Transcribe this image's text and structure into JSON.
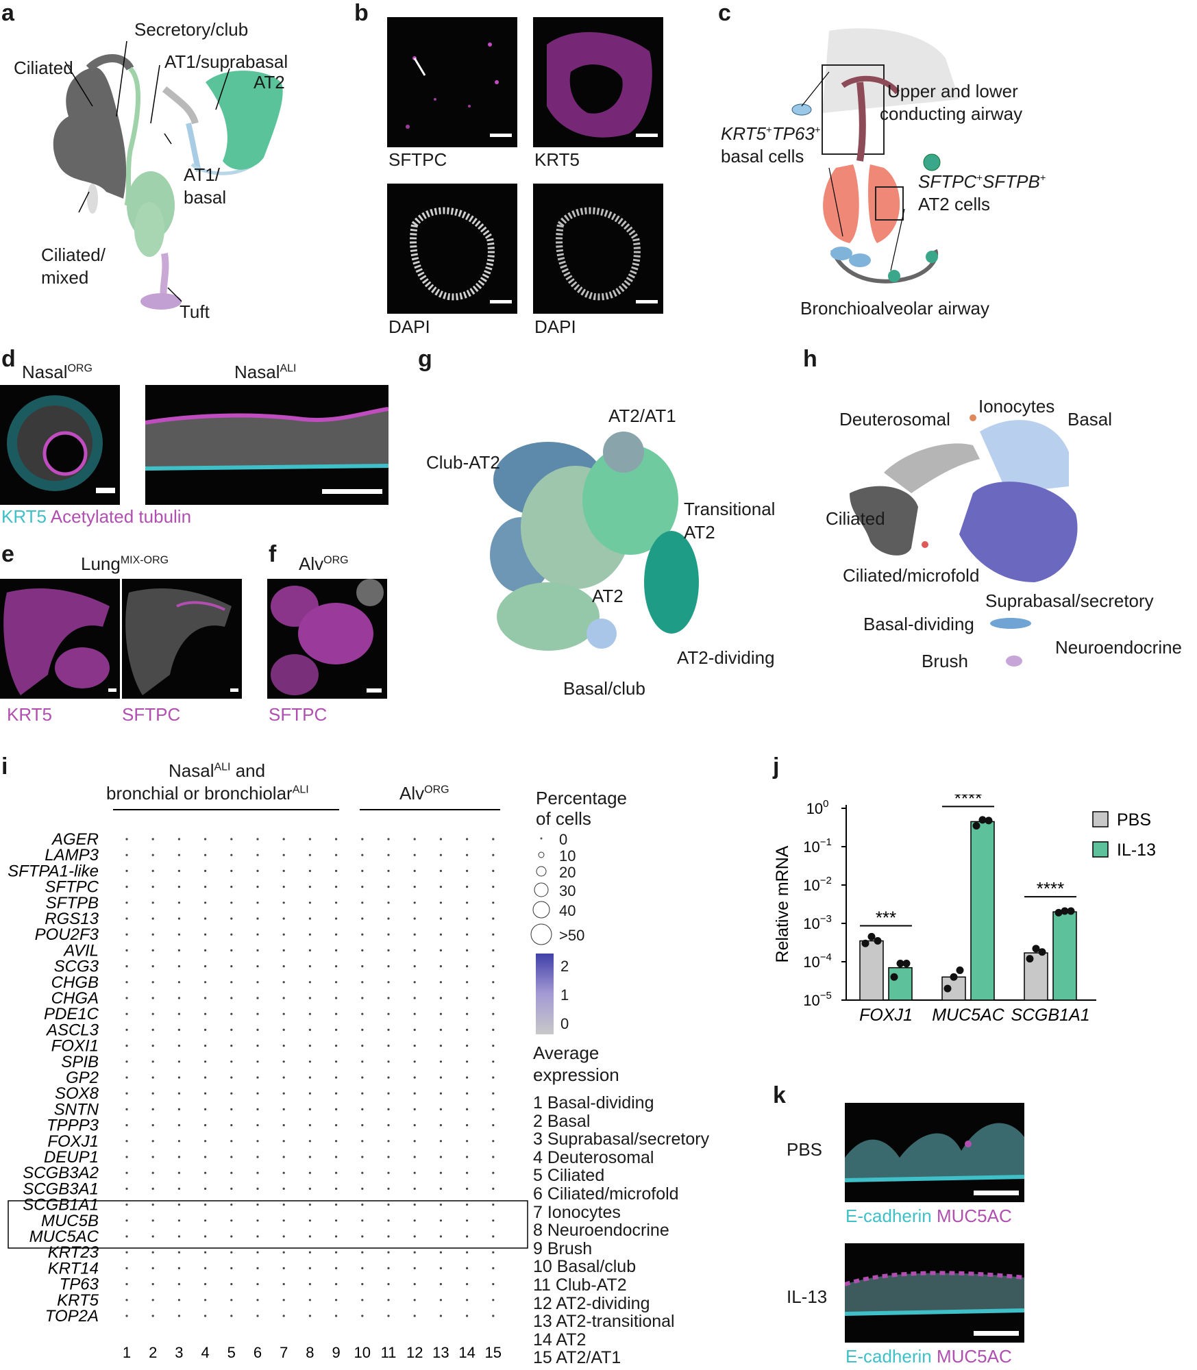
{
  "panels": {
    "a": {
      "letter": "a",
      "labels": [
        "Ciliated",
        "Secretory/club",
        "AT1/suprabasal",
        "AT2",
        "AT1/",
        "basal",
        "Ciliated/",
        "mixed",
        "Tuft"
      ]
    },
    "b": {
      "letter": "b",
      "captions": [
        "SFTPC",
        "KRT5",
        "DAPI",
        "DAPI"
      ]
    },
    "c": {
      "letter": "c",
      "labels": [
        "Upper and lower",
        "conducting airway",
        "KRT5",
        "+",
        "TP63",
        "+",
        "basal cells",
        "SFTPC",
        "+",
        "SFTPB",
        "+",
        "AT2 cells",
        "Bronchioalveolar airway"
      ]
    },
    "d": {
      "letter": "d",
      "titles": [
        {
          "base": "Nasal",
          "sup": "ORG"
        },
        {
          "base": "Nasal",
          "sup": "ALI"
        }
      ],
      "legend": [
        "KRT5",
        "Acetylated tubulin"
      ]
    },
    "e": {
      "letter": "e",
      "title": {
        "base": "Lung",
        "sup": "MIX-ORG"
      },
      "captions": [
        "KRT5",
        "SFTPC"
      ]
    },
    "f": {
      "letter": "f",
      "title": {
        "base": "Alv",
        "sup": "ORG"
      },
      "captions": [
        "SFTPC"
      ]
    },
    "g": {
      "letter": "g",
      "labels": [
        "AT2/AT1",
        "Club-AT2",
        "Transitional",
        "AT2",
        "AT2",
        "AT2-dividing",
        "Basal/club"
      ]
    },
    "h": {
      "letter": "h",
      "labels": [
        "Ionocytes",
        "Deuterosomal",
        "Basal",
        "Ciliated",
        "Ciliated/microfold",
        "Suprabasal/secretory",
        "Basal-dividing",
        "Neuroendocrine",
        "Brush"
      ]
    },
    "i": {
      "letter": "i",
      "group1": {
        "line1_base": "Nasal",
        "line1_sup": "ALI",
        "line1_tail": " and",
        "line2_base": "bronchial or bronchiolar",
        "line2_sup": "ALI"
      },
      "group2": {
        "base": "Alv",
        "sup": "ORG"
      },
      "size_legend_title": [
        "Percentage",
        "of cells"
      ],
      "size_legend": [
        "0",
        "10",
        "20",
        "30",
        "40",
        ">50"
      ],
      "color_legend_ticks": [
        "2",
        "1",
        "0"
      ],
      "color_legend_title": [
        "Average",
        "expression"
      ],
      "cluster_list": [
        "1 Basal-dividing",
        "2 Basal",
        "3 Suprabasal/secretory",
        "4 Deuterosomal",
        "5 Ciliated",
        "6 Ciliated/microfold",
        "7 Ionocytes",
        "8 Neuroendocrine",
        "9 Brush",
        "10 Basal/club",
        "11 Club-AT2",
        "12 AT2-dividing",
        "13 AT2-transitional",
        "14 AT2",
        "15 AT2/AT1"
      ],
      "genes": [
        "AGER",
        "LAMP3",
        "SFTPA1-like",
        "SFTPC",
        "SFTPB",
        "RGS13",
        "POU2F3",
        "AVIL",
        "SCG3",
        "CHGB",
        "CHGA",
        "PDE1C",
        "ASCL3",
        "FOXI1",
        "SPIB",
        "GP2",
        "SOX8",
        "SNTN",
        "TPPP3",
        "FOXJ1",
        "DEUP1",
        "SCGB3A2",
        "SCGB3A1",
        "SCGB1A1",
        "MUC5B",
        "MUC5AC",
        "KRT23",
        "KRT14",
        "TP63",
        "KRT5",
        "TOP2A"
      ],
      "columns": [
        "1",
        "2",
        "3",
        "4",
        "5",
        "6",
        "7",
        "8",
        "9",
        "10",
        "11",
        "12",
        "13",
        "14",
        "15"
      ]
    },
    "j": {
      "letter": "j",
      "significance": [
        "***",
        "****",
        "****"
      ]
    },
    "k": {
      "letter": "k",
      "rows": [
        "PBS",
        "IL-13"
      ],
      "captions": [
        "E-cadherin",
        "MUC5AC"
      ]
    }
  },
  "chart_data": {
    "type": "bar",
    "ylabel": "Relative mRNA",
    "yscale": "log",
    "ylim": [
      1e-05,
      1
    ],
    "yticks": [
      {
        "base": "10",
        "exp": "0"
      },
      {
        "base": "10",
        "exp": "−1"
      },
      {
        "base": "10",
        "exp": "−2"
      },
      {
        "base": "10",
        "exp": "−3"
      },
      {
        "base": "10",
        "exp": "−4"
      },
      {
        "base": "10",
        "exp": "−5"
      }
    ],
    "categories": [
      "FOXJ1",
      "MUC5AC",
      "SCGB1A1"
    ],
    "legend": [
      "PBS",
      "IL-13"
    ],
    "series": [
      {
        "name": "PBS",
        "color": "#c8c8c8",
        "values": [
          0.00035,
          4e-05,
          0.00017
        ],
        "points": [
          [
            0.0003,
            0.00045,
            0.00035
          ],
          [
            2e-05,
            4e-05,
            6e-05
          ],
          [
            0.00012,
            0.00022,
            0.00018
          ]
        ]
      },
      {
        "name": "IL-13",
        "color": "#5dc29b",
        "values": [
          7e-05,
          0.45,
          0.002
        ],
        "points": [
          [
            4e-05,
            9e-05,
            9e-05
          ],
          [
            0.35,
            0.5,
            0.48
          ],
          [
            0.0019,
            0.0021,
            0.0021
          ]
        ]
      }
    ]
  }
}
